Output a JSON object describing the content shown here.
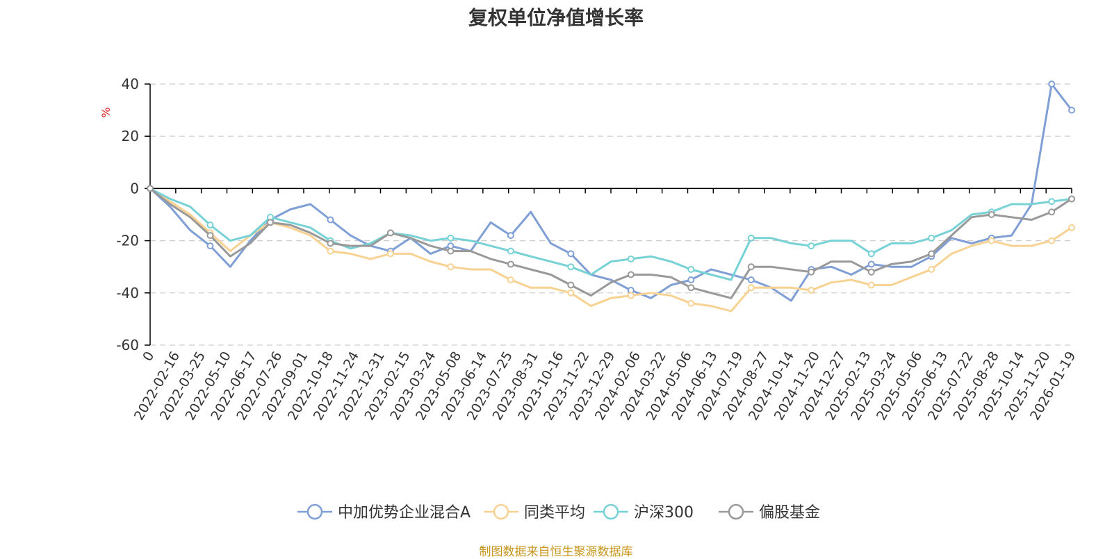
{
  "title": "复权单位净值增长率",
  "footer": "制图数据来自恒生聚源数据库",
  "colors": {
    "title": "#333333",
    "footer": "#c8961e",
    "unit": "#e02020",
    "grid": "#cccccc",
    "axis": "#000000"
  },
  "chart_data": {
    "type": "line",
    "title": "复权单位净值增长率",
    "ylabel": "%",
    "xlabel": "",
    "ylim": [
      -60,
      40
    ],
    "yticks": [
      40,
      20,
      0,
      -20,
      -40,
      -60
    ],
    "x_start": "2022-01-07",
    "x_end": "2026-01-23",
    "tick_labels": [
      "0",
      "2022-02-16",
      "2022-03-25",
      "2022-05-10",
      "2022-06-17",
      "2022-07-26",
      "2022-09-01",
      "2022-10-18",
      "2022-11-24",
      "2022-12-31",
      "2023-02-15",
      "2023-03-24",
      "2023-05-08",
      "2023-06-14",
      "2023-07-25",
      "2023-08-31",
      "2023-10-16",
      "2023-11-22",
      "2023-12-29",
      "2024-02-06",
      "2024-03-22",
      "2024-05-06",
      "2024-06-13",
      "2024-07-19",
      "2024-08-27",
      "2024-10-14",
      "2024-11-20",
      "2024-12-27",
      "2025-02-13",
      "2025-03-24",
      "2025-05-06",
      "2025-06-13",
      "2025-07-22",
      "2025-08-28",
      "2025-10-14",
      "2025-11-20",
      "2026-01-19"
    ],
    "legend_position": "bottom-center",
    "series": [
      {
        "name": "中加优势企业混合A",
        "color": "#7f9fd6",
        "values": [
          0,
          -7,
          -16,
          -22,
          -30,
          -20,
          -12,
          -8,
          -6,
          -12,
          -18,
          -22,
          -24,
          -19,
          -25,
          -22,
          -24,
          -13,
          -18,
          -9,
          -21,
          -25,
          -33,
          -35,
          -39,
          -42,
          -37,
          -35,
          -31,
          -33,
          -35,
          -38,
          -43,
          -31,
          -30,
          -33,
          -29,
          -30,
          -30,
          -26,
          -19,
          -21,
          -19,
          -18,
          -6,
          40,
          30
        ]
      },
      {
        "name": "同类平均",
        "color": "#f8d292",
        "values": [
          0,
          -5,
          -10,
          -17,
          -24,
          -18,
          -13,
          -15,
          -18,
          -24,
          -25,
          -27,
          -25,
          -25,
          -28,
          -30,
          -31,
          -31,
          -35,
          -38,
          -38,
          -40,
          -45,
          -42,
          -41,
          -40,
          -41,
          -44,
          -45,
          -47,
          -38,
          -38,
          -38,
          -39,
          -36,
          -35,
          -37,
          -37,
          -34,
          -31,
          -25,
          -22,
          -20,
          -22,
          -22,
          -20,
          -15
        ]
      },
      {
        "name": "沪深300",
        "color": "#77d2d6",
        "values": [
          0,
          -4,
          -7,
          -14,
          -20,
          -18,
          -11,
          -13,
          -15,
          -20,
          -23,
          -21,
          -17,
          -18,
          -20,
          -19,
          -20,
          -22,
          -24,
          -26,
          -28,
          -30,
          -33,
          -28,
          -27,
          -26,
          -28,
          -31,
          -33,
          -35,
          -19,
          -19,
          -21,
          -22,
          -20,
          -20,
          -25,
          -21,
          -21,
          -19,
          -16,
          -10,
          -9,
          -6,
          -6,
          -5,
          -4
        ]
      },
      {
        "name": "偏股基金",
        "color": "#999999",
        "values": [
          0,
          -6,
          -11,
          -18,
          -26,
          -21,
          -13,
          -14,
          -17,
          -21,
          -22,
          -22,
          -17,
          -19,
          -22,
          -24,
          -24,
          -27,
          -29,
          -31,
          -33,
          -37,
          -41,
          -36,
          -33,
          -33,
          -34,
          -38,
          -40,
          -42,
          -30,
          -30,
          -31,
          -32,
          -28,
          -28,
          -32,
          -29,
          -28,
          -25,
          -18,
          -11,
          -10,
          -11,
          -12,
          -9,
          -4
        ]
      }
    ]
  }
}
